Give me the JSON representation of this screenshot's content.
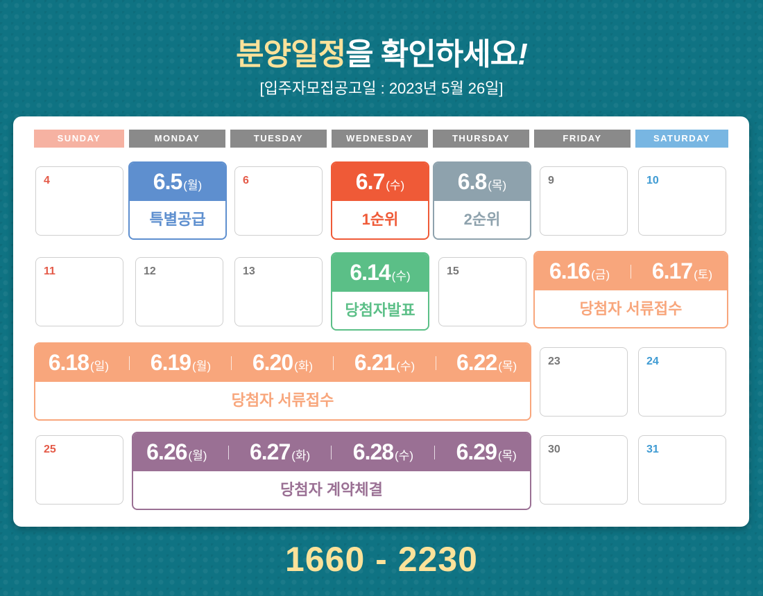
{
  "title": {
    "highlight": "분양일정",
    "rest": "을 확인하세요",
    "bang": "!"
  },
  "subtitle": "[입주자모집공고일 : 2023년 5월 26일]",
  "footer_phone": "1660 - 2230",
  "days": [
    "SUNDAY",
    "MONDAY",
    "TUESDAY",
    "WEDNESDAY",
    "THURSDAY",
    "FRIDAY",
    "SATURDAY"
  ],
  "cells": {
    "d4": "4",
    "d6": "6",
    "d9": "9",
    "d10": "10",
    "d11": "11",
    "d12": "12",
    "d13": "13",
    "d15": "15",
    "d23": "23",
    "d24": "24",
    "d25": "25",
    "d30": "30",
    "d31": "31"
  },
  "events": {
    "special": {
      "dates": [
        {
          "date": "6.5",
          "dow": "(월)"
        }
      ],
      "label": "특별공급"
    },
    "first": {
      "dates": [
        {
          "date": "6.7",
          "dow": "(수)"
        }
      ],
      "label": "1순위"
    },
    "second": {
      "dates": [
        {
          "date": "6.8",
          "dow": "(목)"
        }
      ],
      "label": "2순위"
    },
    "announce": {
      "dates": [
        {
          "date": "6.14",
          "dow": "(수)"
        }
      ],
      "label": "당첨자발표"
    },
    "docs_a": {
      "dates": [
        {
          "date": "6.16",
          "dow": "(금)"
        },
        {
          "date": "6.17",
          "dow": "(토)"
        }
      ],
      "label": "당첨자 서류접수"
    },
    "docs_b": {
      "dates": [
        {
          "date": "6.18",
          "dow": "(일)"
        },
        {
          "date": "6.19",
          "dow": "(월)"
        },
        {
          "date": "6.20",
          "dow": "(화)"
        },
        {
          "date": "6.21",
          "dow": "(수)"
        },
        {
          "date": "6.22",
          "dow": "(목)"
        }
      ],
      "label": "당첨자 서류접수"
    },
    "contract": {
      "dates": [
        {
          "date": "6.26",
          "dow": "(월)"
        },
        {
          "date": "6.27",
          "dow": "(화)"
        },
        {
          "date": "6.28",
          "dow": "(수)"
        },
        {
          "date": "6.29",
          "dow": "(목)"
        }
      ],
      "label": "당첨자 계약체결"
    }
  },
  "colors": {
    "background": "#0f7383",
    "highlight": "#fbe29a",
    "special": "#5e8fcf",
    "first": "#ef5a37",
    "second": "#8ea2ad",
    "announce": "#5bbf87",
    "docs": "#f8a67c",
    "contract": "#9a7094"
  }
}
